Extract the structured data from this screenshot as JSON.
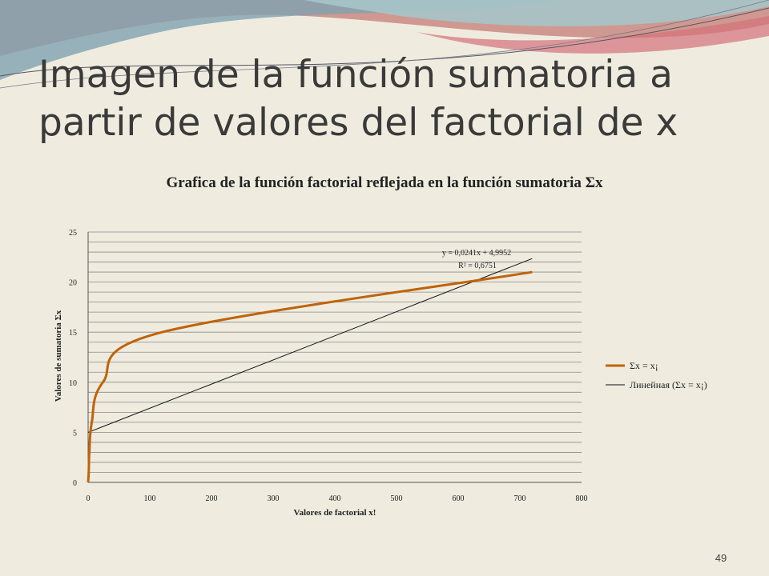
{
  "slide": {
    "title": "Imagen de la función sumatoria a partir de valores del factorial de x",
    "page_number": "49"
  },
  "theme": {
    "background": "#efecdf",
    "wave_colors": [
      "#c98a83",
      "#7fa3b0",
      "#a6c4c8",
      "#d4727a"
    ],
    "series_color": "#c0630a",
    "trendline_color": "#111111",
    "grid_color": "#8a8a8a"
  },
  "chart_data": {
    "type": "line",
    "title": "Grafica de la función factorial reflejada en la función sumatoria Σx",
    "xlabel": "Valores de factorial x!",
    "ylabel": "Valores de sumatoria Σx",
    "xlim": [
      0,
      800
    ],
    "ylim": [
      0,
      25
    ],
    "x_ticks": [
      "0",
      "100",
      "200",
      "300",
      "400",
      "500",
      "600",
      "700",
      "800"
    ],
    "y_ticks": [
      "0",
      "5",
      "10",
      "15",
      "20",
      "25"
    ],
    "grid": true,
    "legend_position": "right",
    "series": [
      {
        "name": "Σx = x¡",
        "x": [
          1,
          2,
          6,
          24,
          120,
          720
        ],
        "y": [
          1,
          3,
          6,
          10,
          15,
          21
        ]
      }
    ],
    "trendline": {
      "name": "Линейная (Σx = x¡)",
      "slope": 0.0241,
      "intercept": 4.9952,
      "x_range": [
        0,
        720
      ],
      "equation": "y = 0,0241x + 4,9952",
      "r_squared": "R² = 0,6751"
    }
  }
}
